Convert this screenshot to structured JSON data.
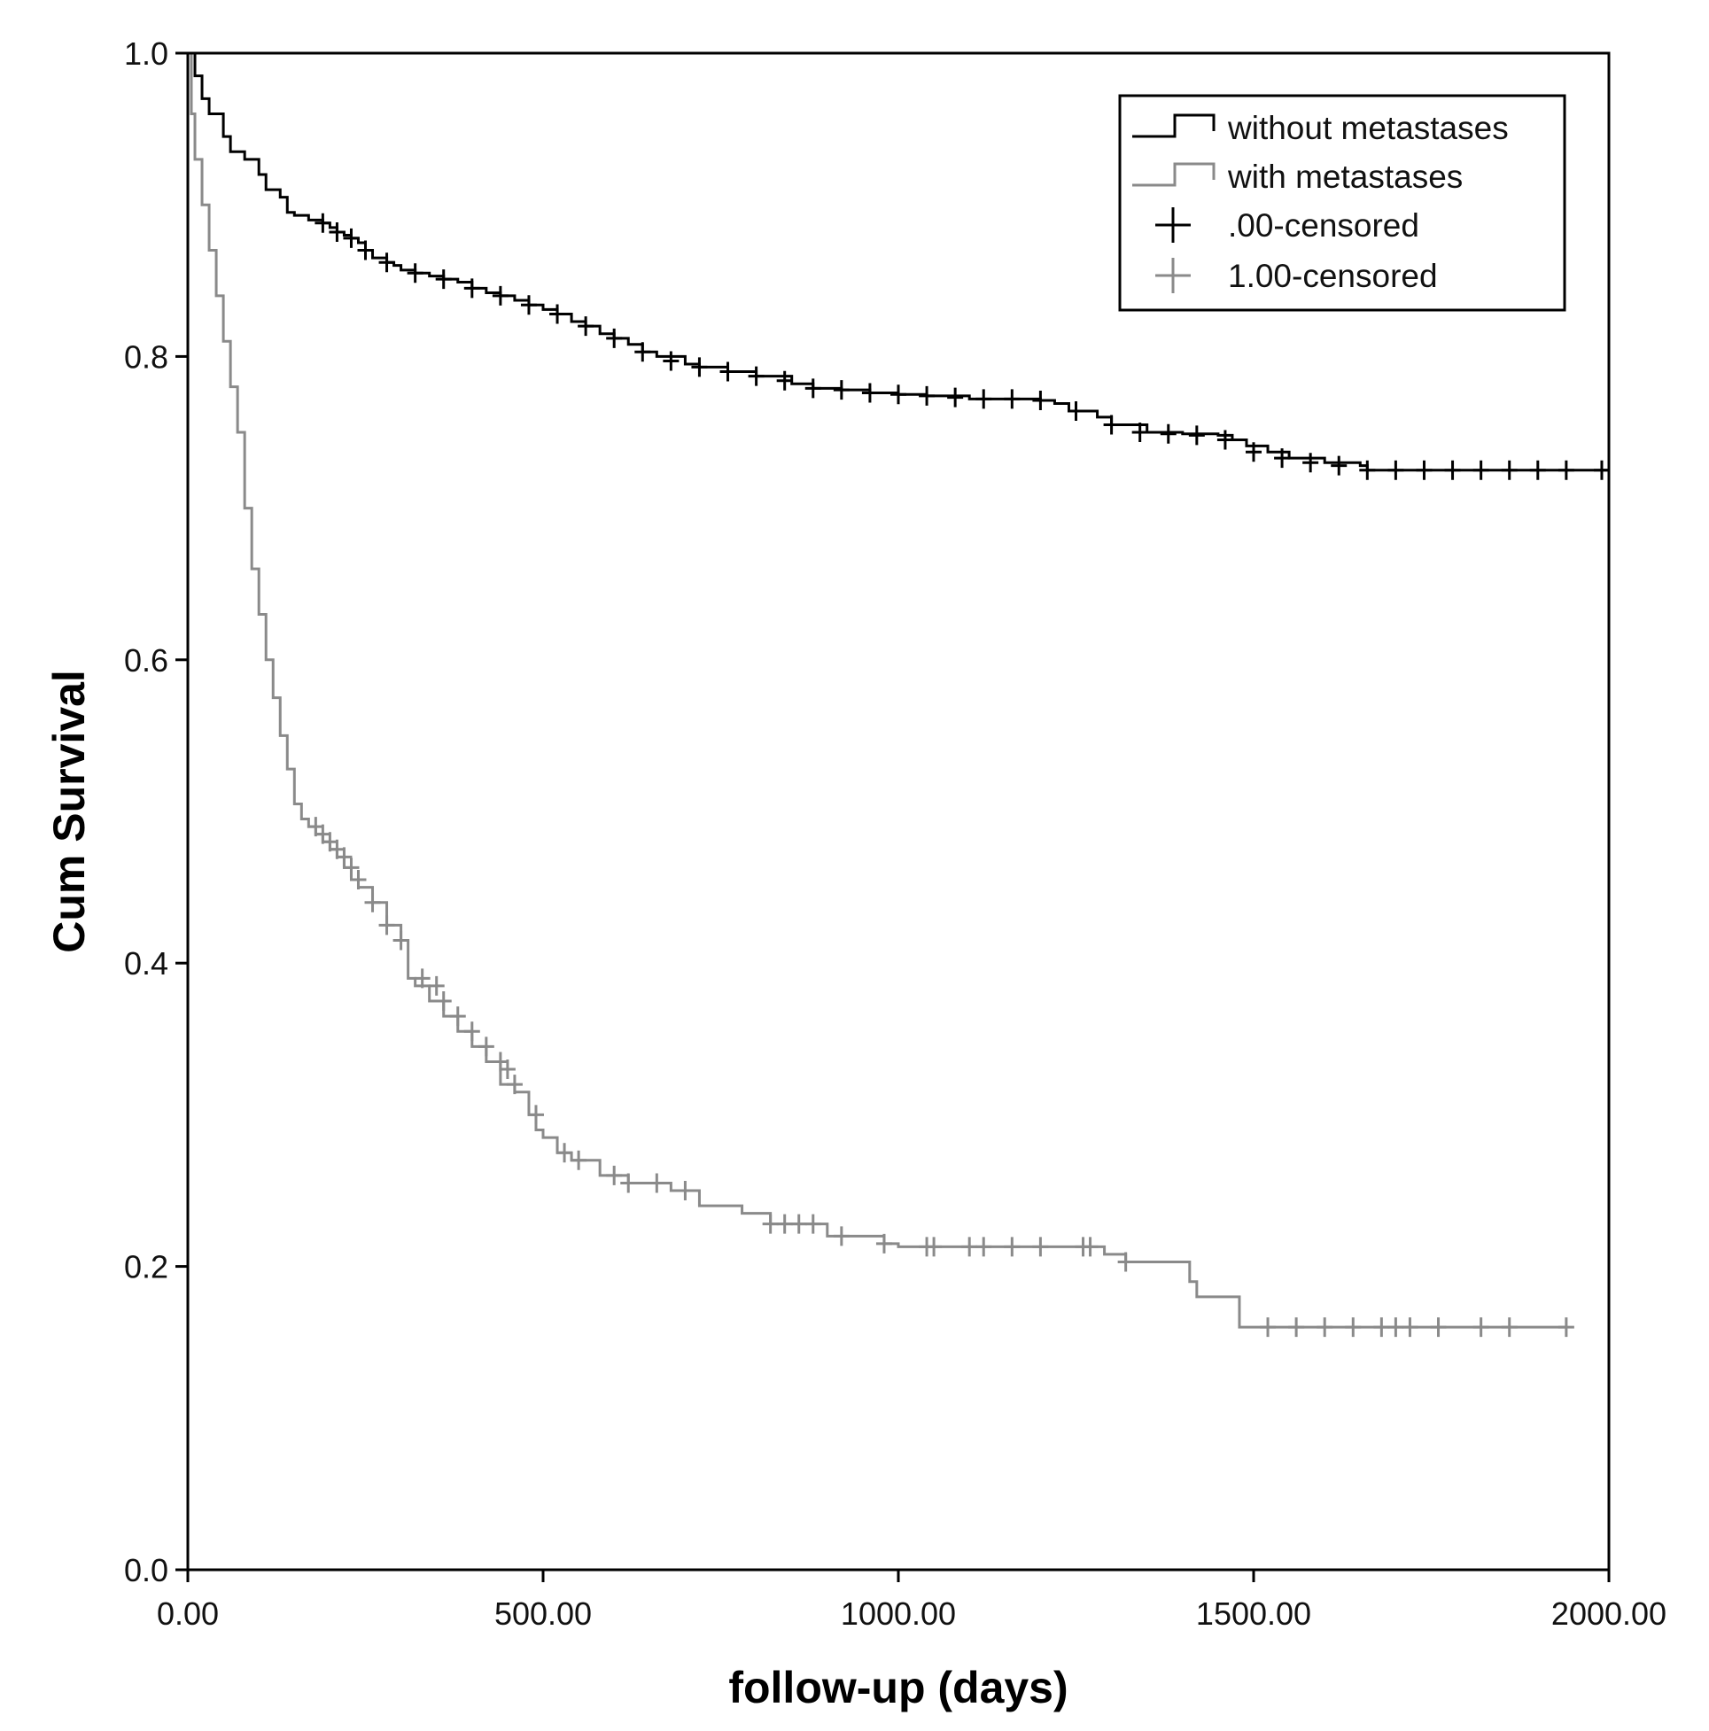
{
  "chart_data": {
    "type": "line",
    "subtype": "kaplan-meier step",
    "xlabel": "follow-up (days)",
    "ylabel": "Cum Survival",
    "xlim": [
      0,
      2000
    ],
    "ylim": [
      0,
      1
    ],
    "x_ticks": [
      0,
      500,
      1000,
      1500,
      2000
    ],
    "x_tick_labels": [
      "0.00",
      "500.00",
      "1000.00",
      "1500.00",
      "2000.00"
    ],
    "y_ticks": [
      0,
      0.2,
      0.4,
      0.6,
      0.8,
      1.0
    ],
    "y_tick_labels": [
      "0.0",
      "0.2",
      "0.4",
      "0.6",
      "0.8",
      "1.0"
    ],
    "grid": false,
    "legend_position": "top-right",
    "legend": {
      "lines": [
        {
          "label": "without metastases",
          "series": 0
        },
        {
          "label": "with metastases",
          "series": 1
        }
      ],
      "markers": [
        {
          "label": ".00-censored",
          "series": 0
        },
        {
          "label": "1.00-censored",
          "series": 1
        }
      ]
    },
    "series": [
      {
        "name": "without metastases",
        "color": "#000000",
        "x": [
          0,
          10,
          20,
          30,
          50,
          60,
          80,
          100,
          110,
          130,
          140,
          150,
          170,
          190,
          200,
          210,
          220,
          230,
          240,
          250,
          260,
          280,
          290,
          300,
          320,
          340,
          360,
          380,
          400,
          420,
          440,
          460,
          480,
          500,
          520,
          540,
          560,
          580,
          600,
          620,
          640,
          660,
          700,
          720,
          760,
          800,
          850,
          880,
          920,
          960,
          1000,
          1040,
          1100,
          1150,
          1200,
          1220,
          1240,
          1280,
          1300,
          1350,
          1400,
          1450,
          1470,
          1490,
          1520,
          1550,
          1600,
          1650,
          1660,
          1700,
          1750,
          1800,
          1850,
          1900,
          1950,
          2000
        ],
        "y": [
          1.0,
          0.985,
          0.97,
          0.96,
          0.945,
          0.935,
          0.93,
          0.92,
          0.91,
          0.905,
          0.895,
          0.893,
          0.89,
          0.888,
          0.885,
          0.882,
          0.88,
          0.878,
          0.875,
          0.87,
          0.865,
          0.862,
          0.86,
          0.857,
          0.855,
          0.853,
          0.851,
          0.849,
          0.845,
          0.842,
          0.84,
          0.837,
          0.834,
          0.831,
          0.828,
          0.823,
          0.82,
          0.815,
          0.812,
          0.808,
          0.803,
          0.8,
          0.795,
          0.793,
          0.79,
          0.787,
          0.782,
          0.779,
          0.778,
          0.776,
          0.775,
          0.774,
          0.772,
          0.772,
          0.771,
          0.769,
          0.764,
          0.76,
          0.755,
          0.75,
          0.749,
          0.748,
          0.745,
          0.741,
          0.737,
          0.733,
          0.73,
          0.728,
          0.725,
          0.725,
          0.725,
          0.725,
          0.725,
          0.725,
          0.725,
          0.725
        ],
        "censored_x": [
          190,
          210,
          230,
          250,
          280,
          320,
          360,
          400,
          440,
          480,
          520,
          560,
          600,
          640,
          680,
          720,
          760,
          800,
          840,
          880,
          920,
          960,
          1000,
          1040,
          1080,
          1120,
          1160,
          1200,
          1250,
          1300,
          1340,
          1380,
          1420,
          1460,
          1500,
          1540,
          1580,
          1620,
          1660,
          1700,
          1740,
          1780,
          1820,
          1860,
          1900,
          1940,
          1990
        ],
        "censored_y": [
          0.888,
          0.882,
          0.878,
          0.87,
          0.862,
          0.855,
          0.851,
          0.845,
          0.84,
          0.834,
          0.828,
          0.82,
          0.812,
          0.803,
          0.797,
          0.793,
          0.79,
          0.787,
          0.784,
          0.779,
          0.778,
          0.776,
          0.775,
          0.774,
          0.773,
          0.772,
          0.772,
          0.771,
          0.764,
          0.755,
          0.75,
          0.749,
          0.748,
          0.745,
          0.737,
          0.733,
          0.73,
          0.728,
          0.725,
          0.725,
          0.725,
          0.725,
          0.725,
          0.725,
          0.725,
          0.725,
          0.725
        ]
      },
      {
        "name": "with metastases",
        "color": "#8a8a8a",
        "x": [
          0,
          5,
          10,
          20,
          30,
          40,
          50,
          60,
          70,
          80,
          90,
          100,
          110,
          120,
          130,
          140,
          150,
          160,
          170,
          180,
          190,
          200,
          210,
          220,
          230,
          240,
          260,
          280,
          300,
          310,
          320,
          340,
          360,
          380,
          400,
          420,
          440,
          460,
          480,
          490,
          500,
          520,
          540,
          580,
          620,
          680,
          720,
          780,
          820,
          900,
          980,
          1000,
          1100,
          1200,
          1290,
          1320,
          1400,
          1410,
          1420,
          1470,
          1480,
          1520,
          1600,
          1700,
          1800,
          1900,
          1940
        ],
        "y": [
          1.0,
          0.96,
          0.93,
          0.9,
          0.87,
          0.84,
          0.81,
          0.78,
          0.75,
          0.7,
          0.66,
          0.63,
          0.6,
          0.575,
          0.55,
          0.528,
          0.505,
          0.495,
          0.49,
          0.485,
          0.48,
          0.475,
          0.47,
          0.463,
          0.455,
          0.45,
          0.44,
          0.425,
          0.415,
          0.39,
          0.385,
          0.375,
          0.365,
          0.355,
          0.345,
          0.335,
          0.32,
          0.315,
          0.3,
          0.29,
          0.285,
          0.275,
          0.27,
          0.26,
          0.255,
          0.25,
          0.24,
          0.235,
          0.228,
          0.22,
          0.215,
          0.213,
          0.213,
          0.213,
          0.208,
          0.203,
          0.203,
          0.19,
          0.18,
          0.18,
          0.16,
          0.16,
          0.16,
          0.16,
          0.16,
          0.16,
          0.16
        ],
        "censored_x": [
          180,
          190,
          200,
          210,
          220,
          230,
          240,
          260,
          280,
          300,
          330,
          350,
          360,
          380,
          400,
          420,
          440,
          450,
          460,
          490,
          530,
          550,
          600,
          620,
          660,
          700,
          820,
          840,
          860,
          880,
          920,
          980,
          1040,
          1050,
          1100,
          1120,
          1160,
          1200,
          1260,
          1270,
          1320,
          1520,
          1560,
          1600,
          1640,
          1680,
          1700,
          1720,
          1760,
          1820,
          1860,
          1940
        ],
        "censored_y": [
          0.49,
          0.485,
          0.48,
          0.475,
          0.47,
          0.463,
          0.455,
          0.44,
          0.425,
          0.415,
          0.39,
          0.385,
          0.375,
          0.365,
          0.355,
          0.345,
          0.335,
          0.33,
          0.32,
          0.3,
          0.275,
          0.27,
          0.26,
          0.255,
          0.255,
          0.25,
          0.228,
          0.228,
          0.228,
          0.228,
          0.22,
          0.215,
          0.213,
          0.213,
          0.213,
          0.213,
          0.213,
          0.213,
          0.213,
          0.213,
          0.203,
          0.16,
          0.16,
          0.16,
          0.16,
          0.16,
          0.16,
          0.16,
          0.16,
          0.16,
          0.16,
          0.16
        ]
      }
    ]
  }
}
